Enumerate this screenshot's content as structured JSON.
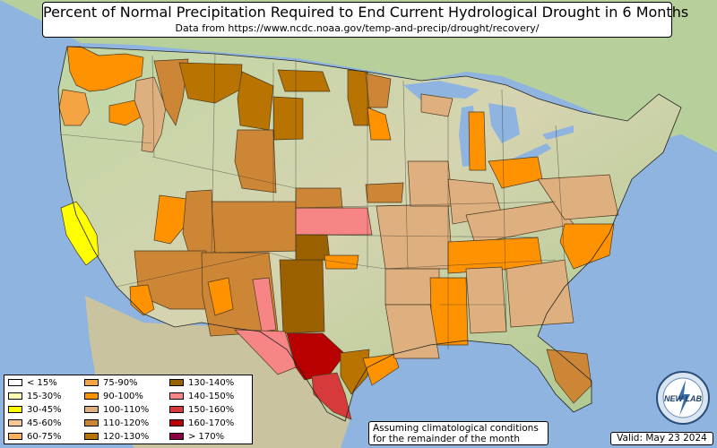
{
  "title": "Percent of Normal Precipitation Required to End Current Hydrological Drought in 6 Months",
  "subtitle": "Data from https://www.ncdc.noaa.gov/temp-and-precip/drought/recovery/",
  "legend": [
    {
      "label": "< 15%",
      "color": "#ffffff"
    },
    {
      "label": "15-30%",
      "color": "#ffffb0"
    },
    {
      "label": "30-45%",
      "color": "#ffff00"
    },
    {
      "label": "45-60%",
      "color": "#f8c896"
    },
    {
      "label": "60-75%",
      "color": "#fbb060"
    },
    {
      "label": "75-90%",
      "color": "#f5a444"
    },
    {
      "label": "90-100%",
      "color": "#ff9200"
    },
    {
      "label": "100-110%",
      "color": "#deb07f"
    },
    {
      "label": "110-120%",
      "color": "#cc8636"
    },
    {
      "label": "120-130%",
      "color": "#b87300"
    },
    {
      "label": "130-140%",
      "color": "#9b6100"
    },
    {
      "label": "140-150%",
      "color": "#f78585"
    },
    {
      "label": "150-160%",
      "color": "#d63a3a"
    },
    {
      "label": "160-170%",
      "color": "#b80000"
    },
    {
      "label": "> 170%",
      "color": "#8c0044"
    }
  ],
  "note": {
    "line1": "Assuming climatological conditions",
    "line2": "for the remainder of the month"
  },
  "valid": "Valid: May 23 2024",
  "logo_text": "NEW LAB"
}
